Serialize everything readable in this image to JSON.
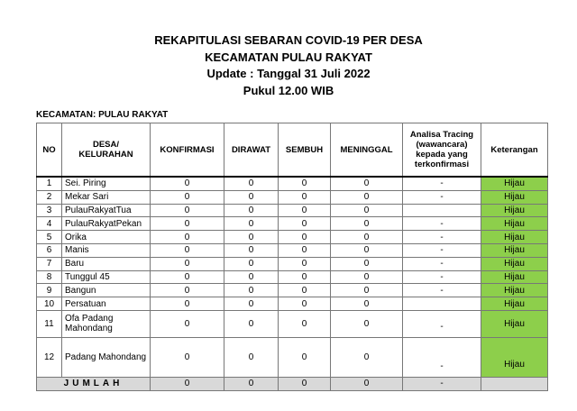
{
  "titles": [
    "REKAPITULASI SEBARAN COVID-19 PER DESA",
    "KECAMATAN PULAU RAKYAT",
    "Update : Tanggal 31 Juli 2022",
    "Pukul 12.00 WIB"
  ],
  "subtitle": "KECAMATAN: PULAU RAKYAT",
  "headers": [
    "NO",
    "DESA/ KELURAHAN",
    "KONFIRMASI",
    "DIRAWAT",
    "SEMBUH",
    "MENINGGAL",
    "Analisa Tracing (wawancara) kepada yang terkonfirmasi",
    "Keterangan"
  ],
  "rows": [
    [
      "1",
      "Sei. Piring",
      "0",
      "0",
      "0",
      "0",
      "-",
      "Hijau"
    ],
    [
      "2",
      "Mekar Sari",
      "0",
      "0",
      "0",
      "0",
      "-",
      "Hijau"
    ],
    [
      "3",
      "PulauRakyatTua",
      "0",
      "0",
      "0",
      "0",
      "",
      "Hijau"
    ],
    [
      "4",
      "PulauRakyatPekan",
      "0",
      "0",
      "0",
      "0",
      "-",
      "Hijau"
    ],
    [
      "5",
      "Orika",
      "0",
      "0",
      "0",
      "0",
      "-",
      "Hijau"
    ],
    [
      "6",
      "Manis",
      "0",
      "0",
      "0",
      "0",
      "-",
      "Hijau"
    ],
    [
      "7",
      "Baru",
      "0",
      "0",
      "0",
      "0",
      "-",
      "Hijau"
    ],
    [
      "8",
      "Tunggul 45",
      "0",
      "0",
      "0",
      "0",
      "-",
      "Hijau"
    ],
    [
      "9",
      "Bangun",
      "0",
      "0",
      "0",
      "0",
      "-",
      "Hijau"
    ],
    [
      "10",
      "Persatuan",
      "0",
      "0",
      "0",
      "0",
      "",
      "Hijau"
    ],
    [
      "11",
      "Ofa Padang Mahondang",
      "0",
      "0",
      "0",
      "0",
      "-",
      "Hijau"
    ],
    [
      "12",
      "Padang Mahondang",
      "0",
      "0",
      "0",
      "0",
      "-",
      "Hijau"
    ]
  ],
  "total": {
    "label": "JUMLAH",
    "values": [
      "0",
      "0",
      "0",
      "0",
      "-",
      ""
    ]
  },
  "colors": {
    "status_green": "#8dcf4b",
    "total_bg": "#d9d9d9"
  }
}
